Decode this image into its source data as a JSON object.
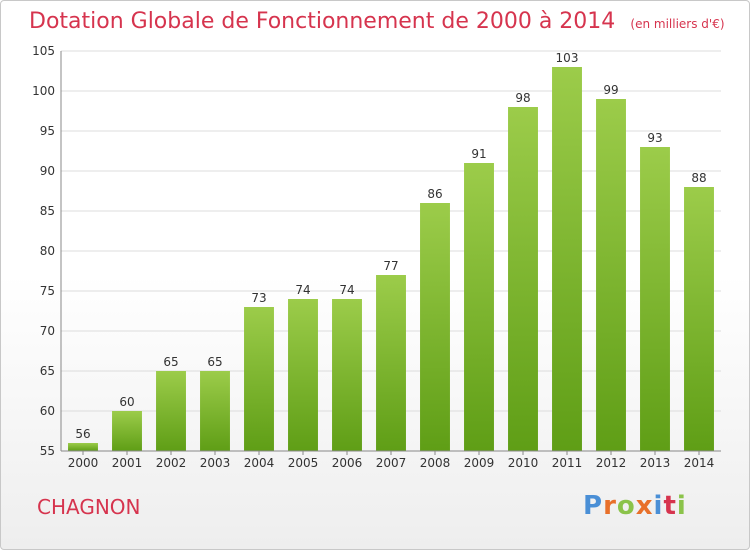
{
  "header": {
    "title": "Dotation Globale de Fonctionnement de 2000 à 2014",
    "subtitle": "(en milliers d'€)"
  },
  "footer": {
    "commune": "CHAGNON",
    "brand": "Proxiti"
  },
  "colors": {
    "title": "#d6344e",
    "bar_top": "#9ccc4a",
    "bar_bottom": "#5f9e16",
    "brand_letters": [
      "#4a8fd6",
      "#e8702a",
      "#8bc34a",
      "#e8702a",
      "#4a8fd6",
      "#d6344e",
      "#8bc34a"
    ]
  },
  "chart_data": {
    "type": "bar",
    "categories": [
      "2000",
      "2001",
      "2002",
      "2003",
      "2004",
      "2005",
      "2006",
      "2007",
      "2008",
      "2009",
      "2010",
      "2011",
      "2012",
      "2013",
      "2014"
    ],
    "values": [
      56,
      60,
      65,
      65,
      73,
      74,
      74,
      77,
      86,
      91,
      98,
      103,
      99,
      93,
      88
    ],
    "ylim": [
      55,
      105
    ],
    "yticks": [
      55,
      60,
      65,
      70,
      75,
      80,
      85,
      90,
      95,
      100,
      105
    ],
    "grid": true,
    "data_labels": true
  }
}
